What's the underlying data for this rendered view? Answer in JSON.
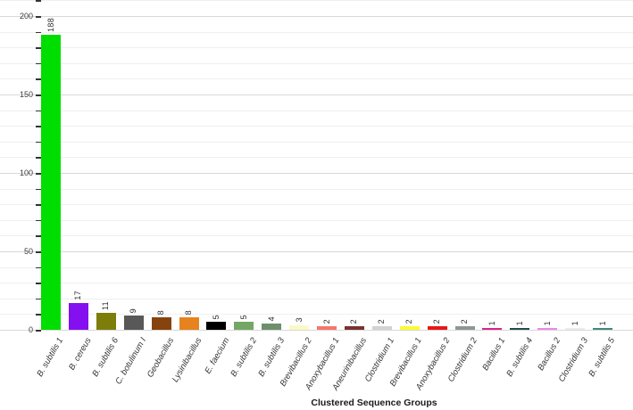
{
  "chart_data": {
    "type": "bar",
    "title": "",
    "xlabel": "Clustered Sequence Groups",
    "ylabel": "",
    "ylim": [
      0,
      210
    ],
    "ytick_labels": [
      "0",
      "50",
      "100",
      "150",
      "200"
    ],
    "ytick_values": [
      0,
      50,
      100,
      150,
      200
    ],
    "minor_tick_step": 10,
    "grid": "horizontal minor every 10 (light), major every 50 (darker)",
    "legend": "none",
    "categories": [
      "B. subtilis 1",
      "B. cereus",
      "B. subtilis 6",
      "C. botulinum I",
      "Geobacillus",
      "Lysinibacillus",
      "E. faecium",
      "B. subtilis 2",
      "B. subtilis 3",
      "Brevibacillus 2",
      "Anoxybacillus 1",
      "Aneurinibacillus",
      "Clostridium 1",
      "Brevibacillus 1",
      "Anoxybacillus 2",
      "Clostridium 2",
      "Bacillus 1",
      "B. subtilis 4",
      "Bacillus 2",
      "Clostridium 3",
      "B. subtilis 5"
    ],
    "values": [
      188,
      17,
      11,
      9,
      8,
      8,
      5,
      5,
      4,
      3,
      2,
      2,
      2,
      2,
      2,
      2,
      1,
      1,
      1,
      1,
      1
    ],
    "bar_colors": [
      "#00DE00",
      "#8410F0",
      "#7D7D0A",
      "#585858",
      "#86430E",
      "#E6831E",
      "#000000",
      "#73A764",
      "#6E8F6B",
      "#FAFAC8",
      "#F4776D",
      "#7A322E",
      "#D2D2D2",
      "#FAFA33",
      "#E81717",
      "#8F9695",
      "#E0218A",
      "#1E4D45",
      "#EE85EE",
      "#EBEBEB",
      "#40897F"
    ],
    "value_labels_shown": true,
    "axis_text_color": "#3c3c3c"
  }
}
